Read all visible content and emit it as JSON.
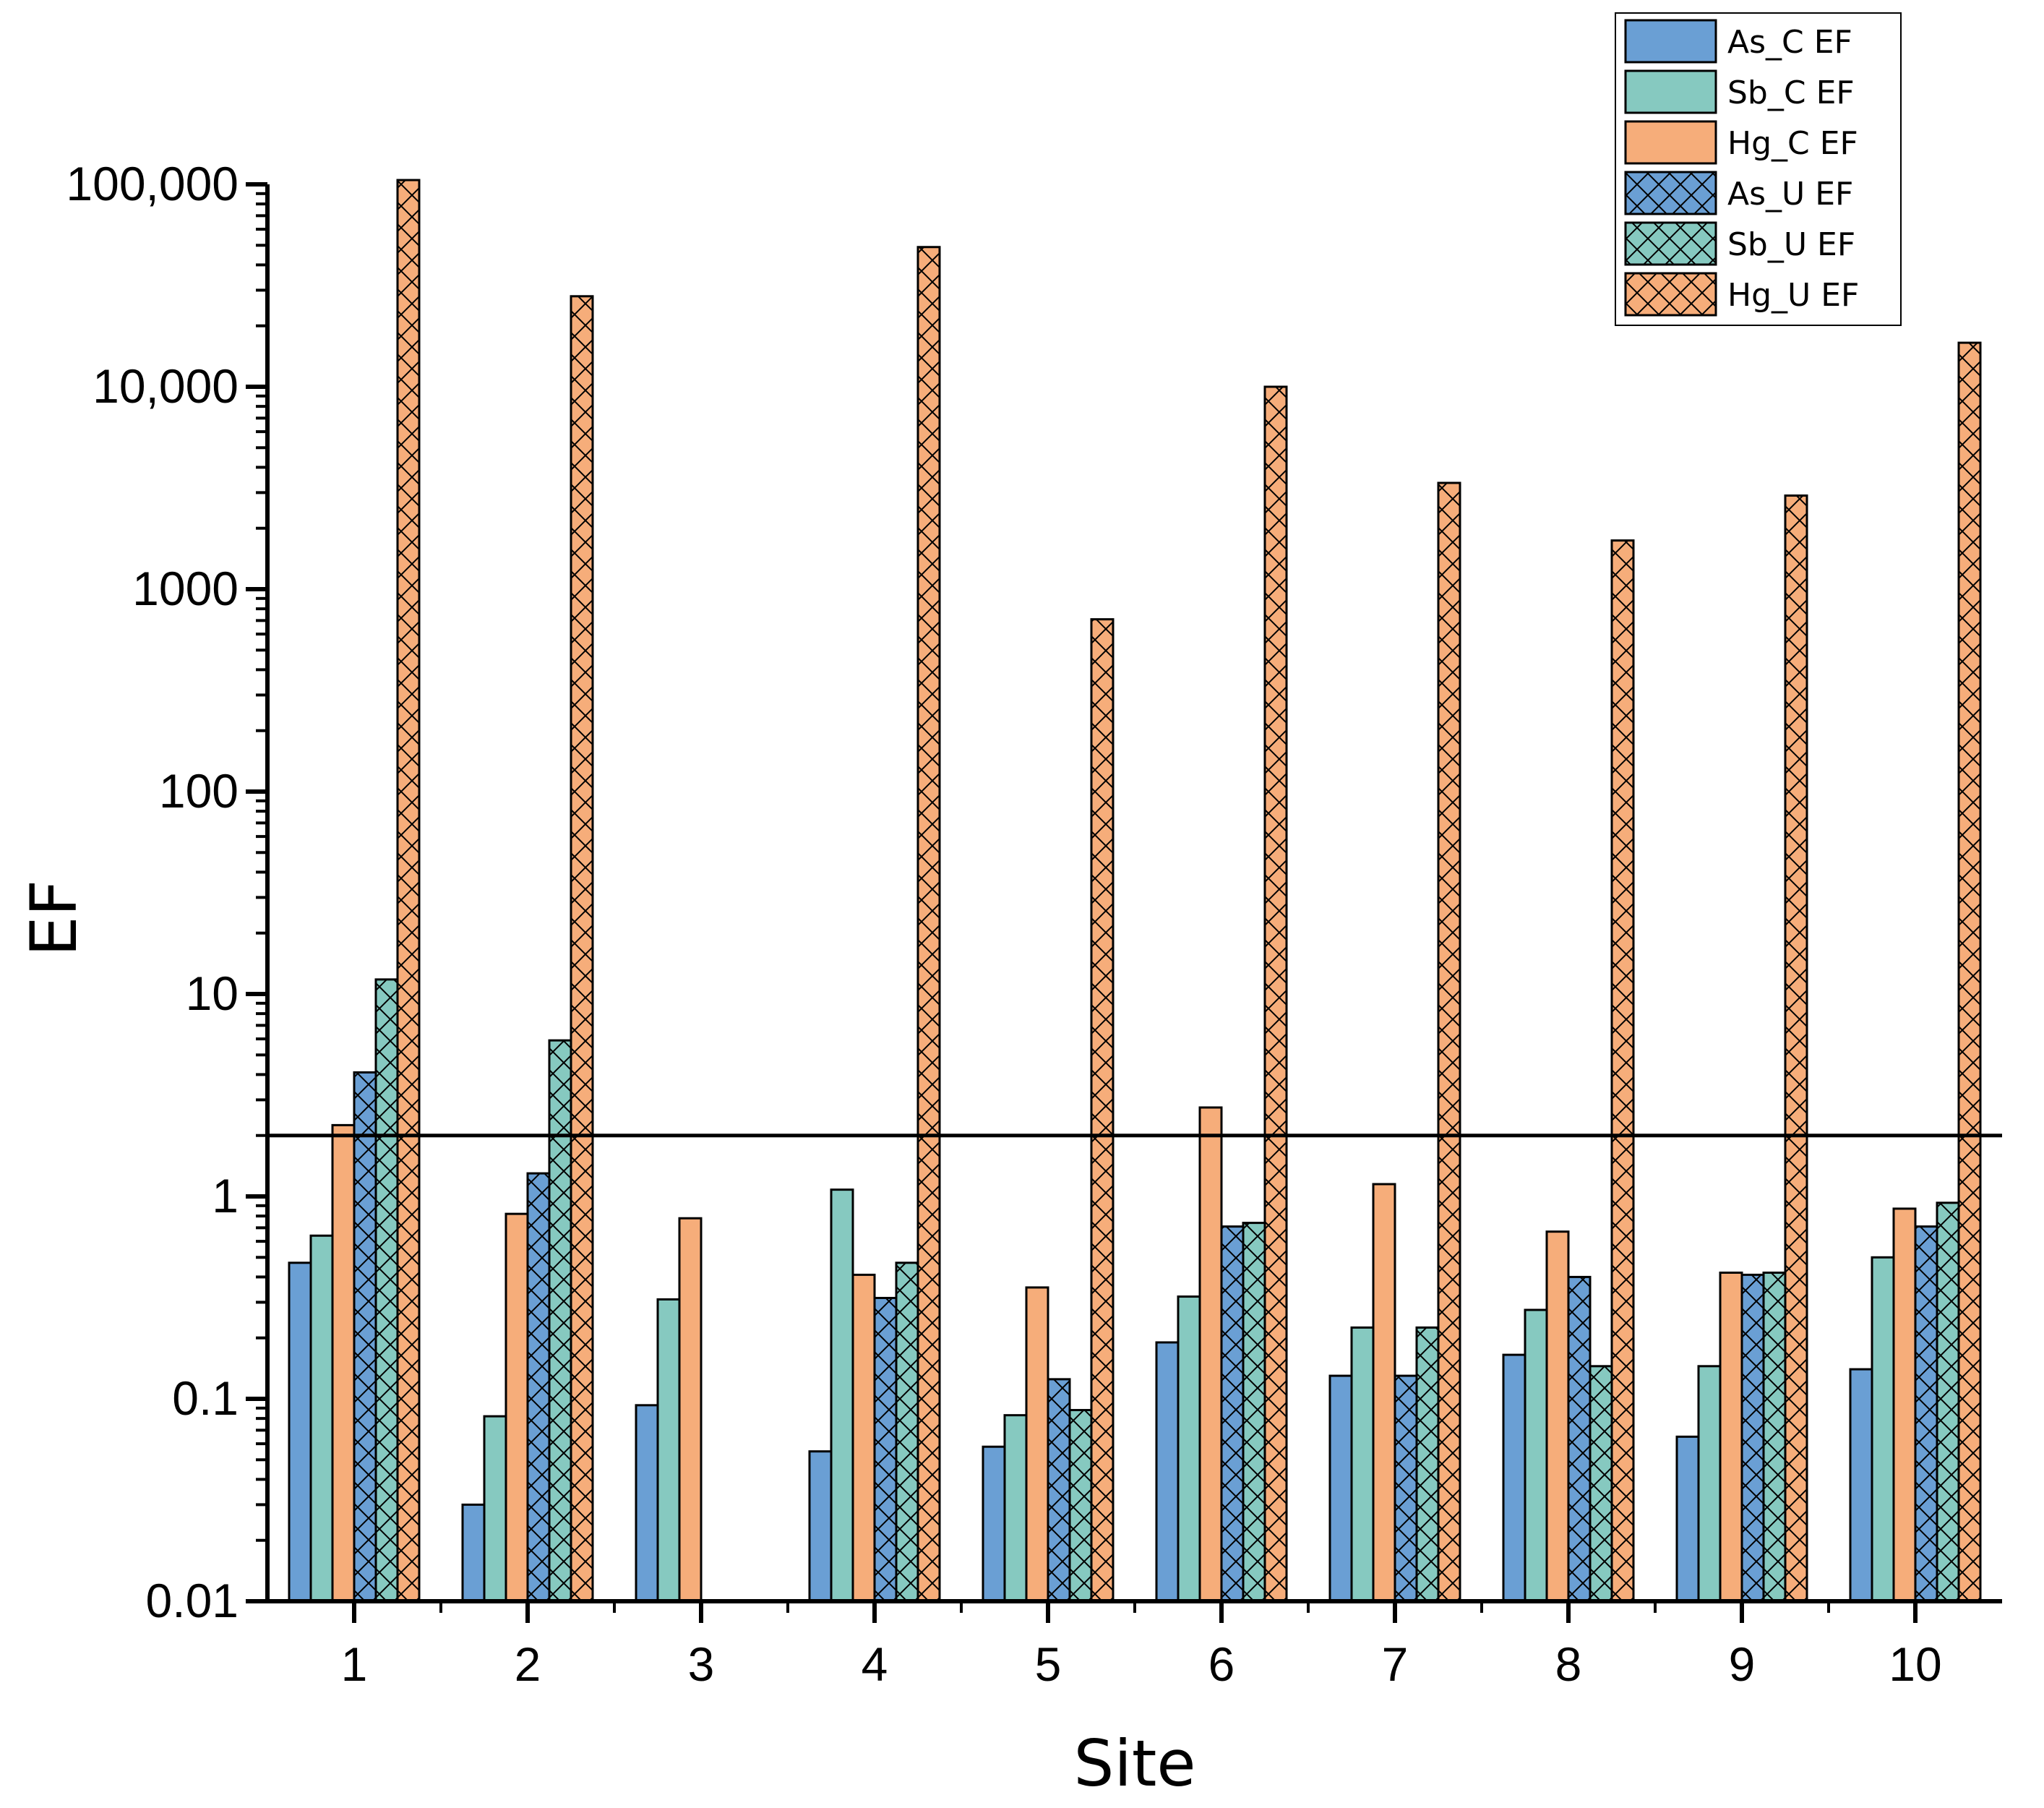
{
  "chart_data": {
    "type": "bar",
    "scale": "log",
    "title": "",
    "xlabel": "Site",
    "ylabel": "EF",
    "ylim": [
      0.01,
      100000
    ],
    "categories": [
      "1",
      "2",
      "3",
      "4",
      "5",
      "6",
      "7",
      "8",
      "9",
      "10"
    ],
    "y_ticks": [
      0.01,
      0.1,
      1,
      10,
      100,
      1000,
      10000,
      100000
    ],
    "y_tick_labels": [
      "0.01",
      "0.1",
      "1",
      "10",
      "100",
      "1000",
      "10,000",
      "100,000"
    ],
    "reference_line": 2,
    "series": [
      {
        "name": "As_C EF",
        "color": "#6A9FD4",
        "pattern": "solid",
        "values": [
          0.47,
          0.03,
          0.093,
          0.055,
          0.058,
          0.19,
          0.13,
          0.165,
          0.065,
          0.14
        ]
      },
      {
        "name": "Sb_C EF",
        "color": "#86C9C0",
        "pattern": "solid",
        "values": [
          0.64,
          0.082,
          0.31,
          1.08,
          0.083,
          0.32,
          0.225,
          0.275,
          0.145,
          0.5
        ]
      },
      {
        "name": "Hg_C EF",
        "color": "#F6AD7A",
        "pattern": "solid",
        "values": [
          2.25,
          0.82,
          0.78,
          0.41,
          0.355,
          2.75,
          1.15,
          0.67,
          0.42,
          0.87
        ]
      },
      {
        "name": "As_U EF",
        "color": "#6A9FD4",
        "pattern": "crosshatch",
        "values": [
          4.1,
          1.3,
          null,
          0.315,
          0.125,
          0.71,
          0.13,
          0.4,
          0.41,
          0.71
        ]
      },
      {
        "name": "Sb_U EF",
        "color": "#86C9C0",
        "pattern": "crosshatch",
        "values": [
          11.8,
          5.9,
          null,
          0.47,
          0.088,
          0.74,
          0.225,
          0.145,
          0.42,
          0.93
        ]
      },
      {
        "name": "Hg_U EF",
        "color": "#F6AD7A",
        "pattern": "crosshatch",
        "values": [
          105000,
          28000,
          null,
          49000,
          710,
          10000,
          3350,
          1740,
          2900,
          16500
        ]
      }
    ],
    "legend_position": "top-right",
    "grid": false
  }
}
